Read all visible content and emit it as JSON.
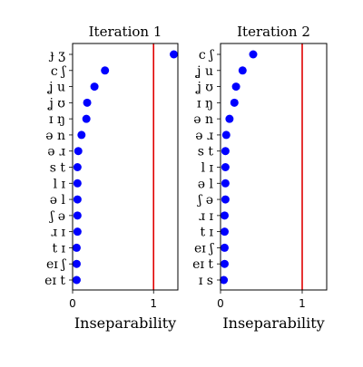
{
  "chart_data": [
    {
      "type": "scatter",
      "title": "Iteration 1",
      "xlabel": "Inseparability",
      "xlim": [
        0,
        1.3
      ],
      "x_ticks": [
        "0",
        "1"
      ],
      "threshold": 1,
      "categories": [
        "ɟ ʒ",
        "c ʃ",
        "ʝ u",
        "ʝ ʊ",
        "ɪ ŋ",
        "ə n",
        "ə ɹ",
        "s t",
        "l ɪ",
        "ə l",
        "ʃ ə",
        "ɹ ɪ",
        "t ɪ",
        "eɪ ʃ",
        "eɪ t"
      ],
      "values": [
        1.25,
        0.4,
        0.27,
        0.18,
        0.17,
        0.11,
        0.07,
        0.06,
        0.06,
        0.06,
        0.06,
        0.06,
        0.05,
        0.05,
        0.05
      ],
      "colors": {
        "points": "#0000ff",
        "threshold": "#e00000"
      }
    },
    {
      "type": "scatter",
      "title": "Iteration 2",
      "xlabel": "Inseparability",
      "xlim": [
        0,
        1.3
      ],
      "x_ticks": [
        "0",
        "1"
      ],
      "threshold": 1,
      "categories": [
        "c ʃ",
        "ʝ u",
        "ʝ ʊ",
        "ɪ ŋ",
        "ə n",
        "ə ɹ",
        "s t",
        "l ɪ",
        "ə l",
        "ʃ ə",
        "ɹ ɪ",
        "t ɪ",
        "eɪ ʃ",
        "eɪ t",
        "ɪ s"
      ],
      "values": [
        0.4,
        0.27,
        0.19,
        0.17,
        0.11,
        0.07,
        0.06,
        0.06,
        0.06,
        0.06,
        0.05,
        0.05,
        0.05,
        0.05,
        0.04
      ],
      "colors": {
        "points": "#0000ff",
        "threshold": "#e00000"
      }
    }
  ]
}
